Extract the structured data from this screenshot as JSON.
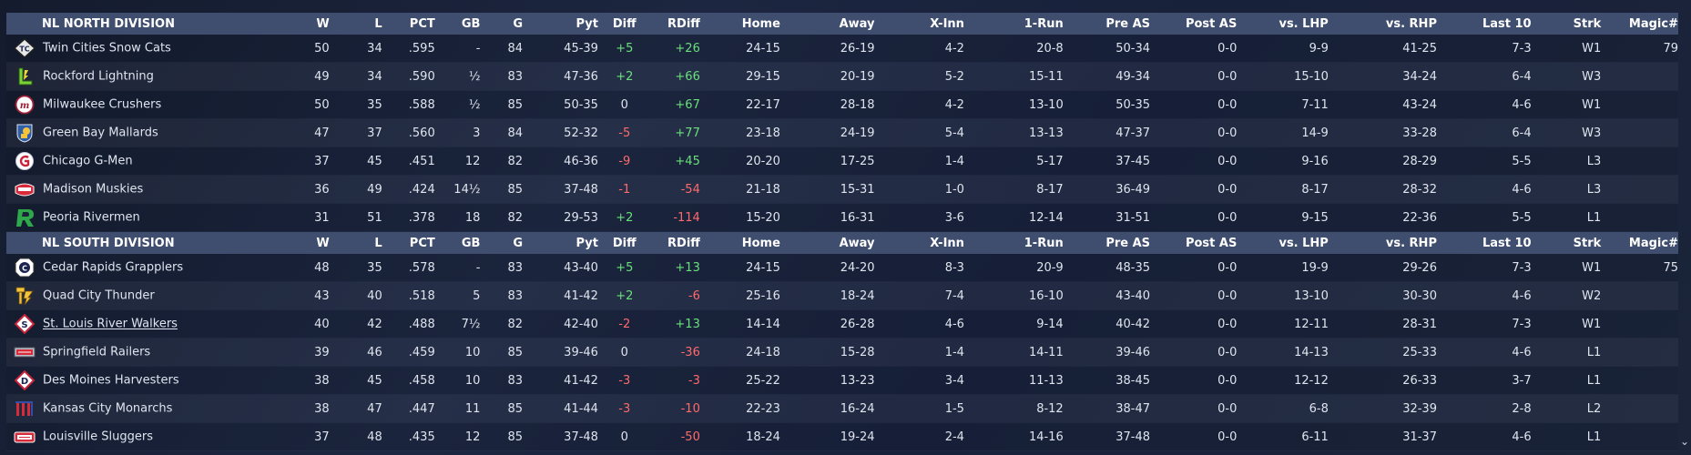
{
  "columns": [
    "W",
    "L",
    "PCT",
    "GB",
    "G",
    "Pyt",
    "Diff",
    "RDiff",
    "Home",
    "Away",
    "X-Inn",
    "1-Run",
    "Pre AS",
    "Post AS",
    "vs. LHP",
    "vs. RHP",
    "Last 10",
    "Strk",
    "Magic#"
  ],
  "divisions": [
    {
      "name": "NL NORTH DIVISION",
      "teams": [
        {
          "name": "Twin Cities Snow Cats",
          "logo": "snow-cats-logo",
          "W": "50",
          "L": "34",
          "PCT": ".595",
          "GB": "-",
          "G": "84",
          "Pyt": "45-39",
          "Diff": "+5",
          "RDiff": "+26",
          "Home": "24-15",
          "Away": "26-19",
          "XInn": "4-2",
          "OneRun": "20-8",
          "PreAS": "50-34",
          "PostAS": "0-0",
          "vsLHP": "9-9",
          "vsRHP": "41-25",
          "Last10": "7-3",
          "Strk": "W1",
          "Magic": "79"
        },
        {
          "name": "Rockford Lightning",
          "logo": "lightning-logo",
          "W": "49",
          "L": "34",
          "PCT": ".590",
          "GB": "½",
          "G": "83",
          "Pyt": "47-36",
          "Diff": "+2",
          "RDiff": "+66",
          "Home": "29-15",
          "Away": "20-19",
          "XInn": "5-2",
          "OneRun": "15-11",
          "PreAS": "49-34",
          "PostAS": "0-0",
          "vsLHP": "15-10",
          "vsRHP": "34-24",
          "Last10": "6-4",
          "Strk": "W3",
          "Magic": ""
        },
        {
          "name": "Milwaukee Crushers",
          "logo": "crushers-logo",
          "W": "50",
          "L": "35",
          "PCT": ".588",
          "GB": "½",
          "G": "85",
          "Pyt": "50-35",
          "Diff": "0",
          "RDiff": "+67",
          "Home": "22-17",
          "Away": "28-18",
          "XInn": "4-2",
          "OneRun": "13-10",
          "PreAS": "50-35",
          "PostAS": "0-0",
          "vsLHP": "7-11",
          "vsRHP": "43-24",
          "Last10": "4-6",
          "Strk": "W1",
          "Magic": ""
        },
        {
          "name": "Green Bay  Mallards",
          "logo": "mallards-logo",
          "W": "47",
          "L": "37",
          "PCT": ".560",
          "GB": "3",
          "G": "84",
          "Pyt": "52-32",
          "Diff": "-5",
          "RDiff": "+77",
          "Home": "23-18",
          "Away": "24-19",
          "XInn": "5-4",
          "OneRun": "13-13",
          "PreAS": "47-37",
          "PostAS": "0-0",
          "vsLHP": "14-9",
          "vsRHP": "33-28",
          "Last10": "6-4",
          "Strk": "W3",
          "Magic": ""
        },
        {
          "name": "Chicago G-Men",
          "logo": "g-men-logo",
          "W": "37",
          "L": "45",
          "PCT": ".451",
          "GB": "12",
          "G": "82",
          "Pyt": "46-36",
          "Diff": "-9",
          "RDiff": "+45",
          "Home": "20-20",
          "Away": "17-25",
          "XInn": "1-4",
          "OneRun": "5-17",
          "PreAS": "37-45",
          "PostAS": "0-0",
          "vsLHP": "9-16",
          "vsRHP": "28-29",
          "Last10": "5-5",
          "Strk": "L3",
          "Magic": ""
        },
        {
          "name": "Madison Muskies",
          "logo": "muskies-logo",
          "W": "36",
          "L": "49",
          "PCT": ".424",
          "GB": "14½",
          "G": "85",
          "Pyt": "37-48",
          "Diff": "-1",
          "RDiff": "-54",
          "Home": "21-18",
          "Away": "15-31",
          "XInn": "1-0",
          "OneRun": "8-17",
          "PreAS": "36-49",
          "PostAS": "0-0",
          "vsLHP": "8-17",
          "vsRHP": "28-32",
          "Last10": "4-6",
          "Strk": "L3",
          "Magic": ""
        },
        {
          "name": "Peoria Rivermen",
          "logo": "rivermen-logo",
          "W": "31",
          "L": "51",
          "PCT": ".378",
          "GB": "18",
          "G": "82",
          "Pyt": "29-53",
          "Diff": "+2",
          "RDiff": "-114",
          "Home": "15-20",
          "Away": "16-31",
          "XInn": "3-6",
          "OneRun": "12-14",
          "PreAS": "31-51",
          "PostAS": "0-0",
          "vsLHP": "9-15",
          "vsRHP": "22-36",
          "Last10": "5-5",
          "Strk": "L1",
          "Magic": ""
        }
      ]
    },
    {
      "name": "NL SOUTH DIVISION",
      "teams": [
        {
          "name": "Cedar Rapids Grapplers",
          "logo": "grapplers-logo",
          "W": "48",
          "L": "35",
          "PCT": ".578",
          "GB": "-",
          "G": "83",
          "Pyt": "43-40",
          "Diff": "+5",
          "RDiff": "+13",
          "Home": "24-15",
          "Away": "24-20",
          "XInn": "8-3",
          "OneRun": "20-9",
          "PreAS": "48-35",
          "PostAS": "0-0",
          "vsLHP": "19-9",
          "vsRHP": "29-26",
          "Last10": "7-3",
          "Strk": "W1",
          "Magic": "75"
        },
        {
          "name": "Quad City Thunder",
          "logo": "thunder-logo",
          "W": "43",
          "L": "40",
          "PCT": ".518",
          "GB": "5",
          "G": "83",
          "Pyt": "41-42",
          "Diff": "+2",
          "RDiff": "-6",
          "Home": "25-16",
          "Away": "18-24",
          "XInn": "7-4",
          "OneRun": "16-10",
          "PreAS": "43-40",
          "PostAS": "0-0",
          "vsLHP": "13-10",
          "vsRHP": "30-30",
          "Last10": "4-6",
          "Strk": "W2",
          "Magic": ""
        },
        {
          "name": "St. Louis River Walkers",
          "logo": "river-walkers-logo",
          "W": "40",
          "L": "42",
          "PCT": ".488",
          "GB": "7½",
          "G": "82",
          "Pyt": "42-40",
          "Diff": "-2",
          "RDiff": "+13",
          "Home": "14-14",
          "Away": "26-28",
          "XInn": "4-6",
          "OneRun": "9-14",
          "PreAS": "40-42",
          "PostAS": "0-0",
          "vsLHP": "12-11",
          "vsRHP": "28-31",
          "Last10": "7-3",
          "Strk": "W1",
          "Magic": "",
          "link": true
        },
        {
          "name": "Springfield Railers",
          "logo": "railers-logo",
          "W": "39",
          "L": "46",
          "PCT": ".459",
          "GB": "10",
          "G": "85",
          "Pyt": "39-46",
          "Diff": "0",
          "RDiff": "-36",
          "Home": "24-18",
          "Away": "15-28",
          "XInn": "1-4",
          "OneRun": "14-11",
          "PreAS": "39-46",
          "PostAS": "0-0",
          "vsLHP": "14-13",
          "vsRHP": "25-33",
          "Last10": "4-6",
          "Strk": "L1",
          "Magic": ""
        },
        {
          "name": "Des Moines Harvesters",
          "logo": "harvesters-logo",
          "W": "38",
          "L": "45",
          "PCT": ".458",
          "GB": "10",
          "G": "83",
          "Pyt": "41-42",
          "Diff": "-3",
          "RDiff": "-3",
          "Home": "25-22",
          "Away": "13-23",
          "XInn": "3-4",
          "OneRun": "11-13",
          "PreAS": "38-45",
          "PostAS": "0-0",
          "vsLHP": "12-12",
          "vsRHP": "26-33",
          "Last10": "3-7",
          "Strk": "L1",
          "Magic": ""
        },
        {
          "name": "Kansas City Monarchs",
          "logo": "monarchs-logo",
          "W": "38",
          "L": "47",
          "PCT": ".447",
          "GB": "11",
          "G": "85",
          "Pyt": "41-44",
          "Diff": "-3",
          "RDiff": "-10",
          "Home": "22-23",
          "Away": "16-24",
          "XInn": "1-5",
          "OneRun": "8-12",
          "PreAS": "38-47",
          "PostAS": "0-0",
          "vsLHP": "6-8",
          "vsRHP": "32-39",
          "Last10": "2-8",
          "Strk": "L2",
          "Magic": ""
        },
        {
          "name": "Louisville Sluggers",
          "logo": "sluggers-logo",
          "W": "37",
          "L": "48",
          "PCT": ".435",
          "GB": "12",
          "G": "85",
          "Pyt": "37-48",
          "Diff": "0",
          "RDiff": "-50",
          "Home": "18-24",
          "Away": "19-24",
          "XInn": "2-4",
          "OneRun": "14-16",
          "PreAS": "37-48",
          "PostAS": "0-0",
          "vsLHP": "6-11",
          "vsRHP": "31-37",
          "Last10": "4-6",
          "Strk": "L1",
          "Magic": ""
        }
      ]
    }
  ]
}
